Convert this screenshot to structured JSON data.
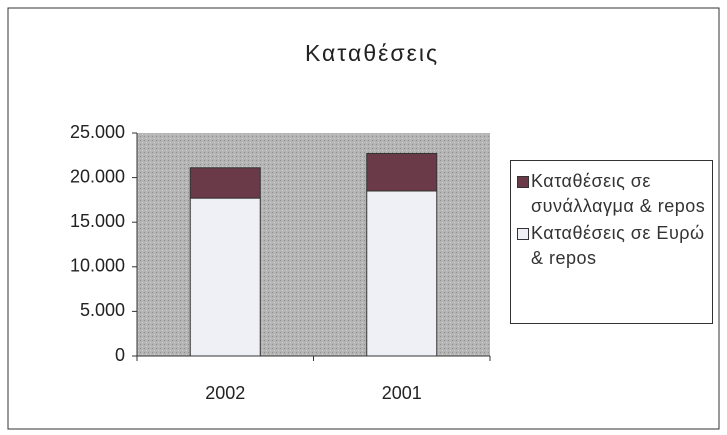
{
  "chart_data": {
    "type": "bar",
    "stacked": true,
    "title": "Καταθέσεις",
    "categories": [
      "2002",
      "2001"
    ],
    "series": [
      {
        "name": "Καταθέσεις σε Ευρώ & repos",
        "color": "#eef0f6",
        "values": [
          17700,
          18500
        ]
      },
      {
        "name": "Καταθέσεις σε συνάλλαγμα & repos",
        "color": "#6b3a48",
        "values": [
          3400,
          4200
        ]
      }
    ],
    "ylim": [
      0,
      25000
    ],
    "yticks": [
      0,
      {
        "value": 5000,
        "label": "5.000"
      },
      {
        "value": 10000,
        "label": "10.000"
      },
      {
        "value": 15000,
        "label": "15.000"
      },
      {
        "value": 20000,
        "label": "20.000"
      },
      {
        "value": 25000,
        "label": "25.000"
      }
    ],
    "legend": "right"
  }
}
